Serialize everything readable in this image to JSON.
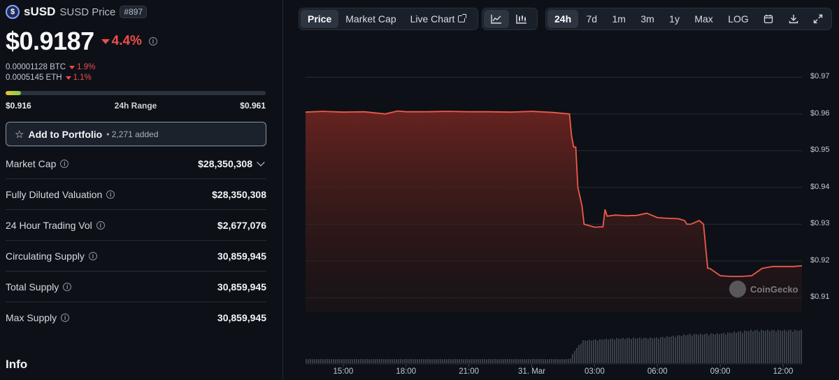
{
  "coin": {
    "logo_glyph": "$",
    "name": "sUSD",
    "symbol_label": "SUSD Price",
    "rank": "#897",
    "price": "$0.9187",
    "change": "4.4%",
    "change_color": "#ef4d4d"
  },
  "conversions": [
    {
      "value": "0.00001128 BTC",
      "change": "1.9%"
    },
    {
      "value": "0.0005145 ETH",
      "change": "1.1%"
    }
  ],
  "range": {
    "low": "$0.916",
    "label": "24h Range",
    "high": "$0.961",
    "current_fraction": 0.06
  },
  "portfolio": {
    "label": "Add to Portfolio",
    "count": "• 2,271 added"
  },
  "stats": [
    {
      "label": "Market Cap",
      "value": "$28,350,308",
      "has_dropdown": true
    },
    {
      "label": "Fully Diluted Valuation",
      "value": "$28,350,308"
    },
    {
      "label": "24 Hour Trading Vol",
      "value": "$2,677,076"
    },
    {
      "label": "Circulating Supply",
      "value": "30,859,945"
    },
    {
      "label": "Total Supply",
      "value": "30,859,945"
    },
    {
      "label": "Max Supply",
      "value": "30,859,945"
    }
  ],
  "info_heading": "Info",
  "toolbar": {
    "view_tabs": [
      "Price",
      "Market Cap",
      "Live Chart"
    ],
    "active_view": "Price",
    "chart_types": [
      "line-chart-icon",
      "candlestick-icon"
    ],
    "ranges": [
      "24h",
      "7d",
      "1m",
      "3m",
      "1y",
      "Max",
      "LOG"
    ],
    "active_range": "24h",
    "tools": [
      "calendar-icon",
      "download-icon",
      "fullscreen-icon"
    ]
  },
  "watermark": "CoinGecko",
  "chart_data": {
    "type": "area",
    "line_color": "#ef5a4a",
    "y_ticks": [
      "$0.97",
      "$0.96",
      "$0.95",
      "$0.94",
      "$0.93",
      "$0.92",
      "$0.91"
    ],
    "ylim": [
      0.908,
      0.975
    ],
    "x_ticks": [
      "15:00",
      "18:00",
      "21:00",
      "31. Mar",
      "03:00",
      "06:00",
      "09:00",
      "12:00"
    ],
    "x_tick_hours": [
      15,
      18,
      21,
      24,
      27,
      30,
      33,
      36
    ],
    "xlim": [
      13.2,
      36.9
    ],
    "series": [
      {
        "x": [
          13.2,
          14,
          15,
          16,
          17,
          17.6,
          18,
          19,
          20,
          21,
          22,
          23,
          24,
          25,
          25.8,
          25.9,
          26.0,
          26.1,
          26.2,
          26.4,
          26.5,
          27,
          27.4,
          27.5,
          27.6,
          28,
          28.5,
          29,
          29.5,
          30,
          30.5,
          31,
          31.3,
          31.4,
          31.6,
          32,
          32.2,
          32.4,
          32.5,
          33,
          33.5,
          34,
          34.5,
          35,
          35.5,
          36,
          36.5,
          36.9
        ],
        "y": [
          0.9605,
          0.9607,
          0.9605,
          0.9606,
          0.96,
          0.9608,
          0.9606,
          0.9606,
          0.9607,
          0.9606,
          0.9606,
          0.9605,
          0.9607,
          0.9604,
          0.96,
          0.954,
          0.951,
          0.951,
          0.94,
          0.935,
          0.93,
          0.9292,
          0.9293,
          0.934,
          0.9322,
          0.9325,
          0.9323,
          0.9324,
          0.933,
          0.9318,
          0.9316,
          0.9315,
          0.931,
          0.93,
          0.93,
          0.931,
          0.93,
          0.918,
          0.918,
          0.916,
          0.9158,
          0.9158,
          0.916,
          0.918,
          0.9185,
          0.9185,
          0.9185,
          0.9187
        ]
      }
    ],
    "volume": {
      "x": [
        13.2,
        25.8,
        26.0,
        26.4,
        28,
        30,
        31.5,
        33,
        34.5,
        36.9
      ],
      "relative": [
        0.1,
        0.1,
        0.3,
        0.55,
        0.6,
        0.62,
        0.7,
        0.72,
        0.8,
        0.8
      ]
    }
  }
}
